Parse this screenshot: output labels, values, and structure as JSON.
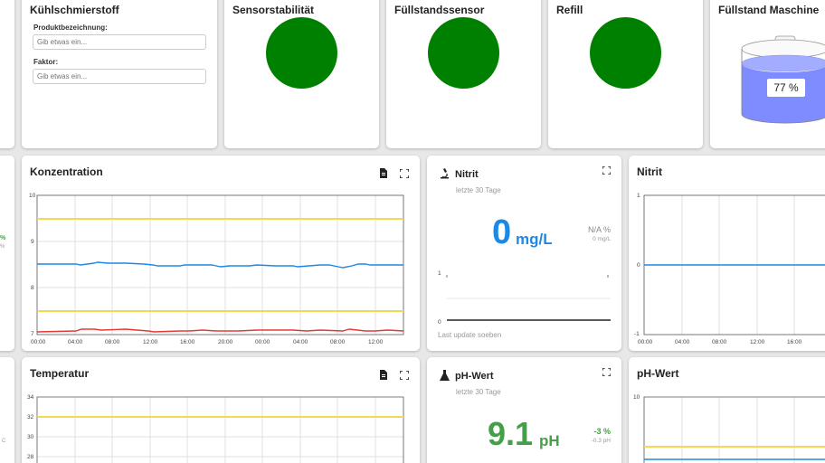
{
  "colors": {
    "green_led": "#008000",
    "blue": "#1e88e5",
    "green_text": "#43a047",
    "threshold_yellow": "#f2d94e",
    "series_red": "#e53935",
    "tank_liquid": "#7f8cff"
  },
  "kuehlschmierstoff": {
    "title": "Kühlschmierstoff",
    "produkt_label": "Produktbezeichnung:",
    "produkt_placeholder": "Gib etwas ein...",
    "faktor_label": "Faktor:",
    "faktor_placeholder": "Gib etwas ein..."
  },
  "leds": [
    {
      "title": "Sensorstabilität",
      "status": "ok"
    },
    {
      "title": "Füllstandssensor",
      "status": "ok"
    },
    {
      "title": "Refill",
      "status": "ok"
    }
  ],
  "tank": {
    "title": "Füllstand Maschine",
    "value_label": "77 %",
    "fill_fraction": 0.77
  },
  "konzentration": {
    "title": "Konzentration",
    "y_ticks": [
      "10",
      "9",
      "8",
      "7"
    ],
    "x_ticks": [
      "00:00",
      "04:00",
      "08:00",
      "12:00",
      "16:00",
      "20:00",
      "00:00",
      "04:00",
      "08:00",
      "12:00"
    ]
  },
  "nitrit_stat": {
    "icon": "microscope-icon",
    "title": "Nitrit",
    "subtitle": "letzte 30 Tage",
    "value": "0",
    "unit": "mg/L",
    "delta_pct": "N/A %",
    "delta_abs": "0 mg/L",
    "spark_top": "1",
    "spark_bottom": "0",
    "footer": "Last update soeben"
  },
  "nitrit_chart": {
    "title": "Nitrit",
    "y_ticks": [
      "1",
      "0",
      "-1"
    ],
    "x_ticks": [
      "00:00",
      "04:00",
      "08:00",
      "12:00",
      "16:00"
    ]
  },
  "temperatur": {
    "title": "Temperatur",
    "y_ticks": [
      "34",
      "32",
      "30",
      "28"
    ]
  },
  "ph_stat": {
    "icon": "flask-icon",
    "title": "pH-Wert",
    "subtitle": "letzte 30 Tage",
    "value": "9.1",
    "unit": "pH",
    "delta_pct": "-3 %",
    "delta_abs": "-0.3 pH"
  },
  "ph_chart": {
    "title": "pH-Wert",
    "y_ticks": [
      "10"
    ]
  },
  "left_edge": {
    "top_mark": "%",
    "top_mark2": "%",
    "bottom_mark": "C"
  }
}
